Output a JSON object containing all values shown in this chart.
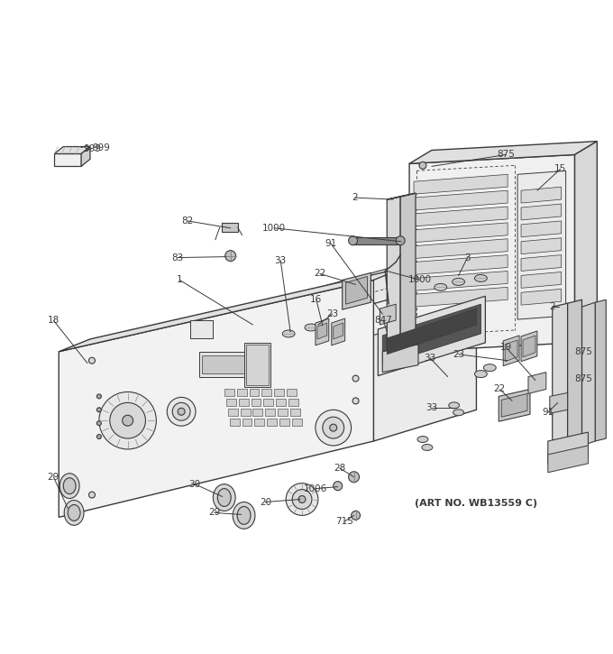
{
  "art_note": "(ART NO. WB13559 C)",
  "background_color": "#ffffff",
  "line_color": "#3a3a3a",
  "fig_width": 6.8,
  "fig_height": 7.25,
  "dpi": 100
}
